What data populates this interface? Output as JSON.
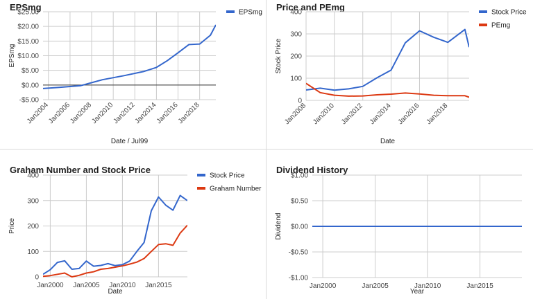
{
  "chart_data": [
    {
      "id": "p1",
      "type": "line",
      "title": "EPSmg",
      "xlabel": "Date / Jul99",
      "ylabel": "EPSmg",
      "xlim": [
        2003.5,
        2019.5
      ],
      "ylim": [
        -5,
        25
      ],
      "yticks": [
        -5,
        0,
        5,
        10,
        15,
        20,
        25
      ],
      "ytick_labels": [
        "-$5.00",
        "$0.00",
        "$5.00",
        "$10.00",
        "$15.00",
        "$20.00",
        "$25.00"
      ],
      "xticks": [
        2004,
        2006,
        2008,
        2010,
        2012,
        2014,
        2016,
        2018
      ],
      "xtick_labels": [
        "Jan2004",
        "Jan2006",
        "Jan2008",
        "Jan2010",
        "Jan2012",
        "Jan2014",
        "Jan2016",
        "Jan2018"
      ],
      "rotate_xticks": true,
      "vgrid": true,
      "zero_line": true,
      "legend": "right",
      "series": [
        {
          "name": "EPSmg",
          "color": "#3366cc",
          "x": [
            2003.5,
            2005,
            2007,
            2009,
            2011,
            2012.8,
            2014,
            2015,
            2016,
            2017,
            2018,
            2019,
            2019.5
          ],
          "y": [
            -1.2,
            -0.8,
            -0.2,
            1.8,
            3.2,
            4.6,
            6.0,
            8.3,
            11.0,
            13.8,
            14.0,
            17.0,
            20.5
          ]
        }
      ]
    },
    {
      "id": "p2",
      "type": "line",
      "title": "Price and PEmg",
      "xlabel": "Date",
      "ylabel": "Stock Price",
      "xlim": [
        2008,
        2019.5
      ],
      "ylim": [
        0,
        400
      ],
      "yticks": [
        0,
        100,
        200,
        300,
        400
      ],
      "ytick_labels": [
        "0",
        "100",
        "200",
        "300",
        "400"
      ],
      "xticks": [
        2008,
        2010,
        2012,
        2014,
        2016,
        2018
      ],
      "xtick_labels": [
        "Jan2008",
        "Jan2010",
        "Jan2012",
        "Jan2014",
        "Jan2016",
        "Jan2018"
      ],
      "rotate_xticks": true,
      "vgrid": true,
      "zero_line": false,
      "legend": "right",
      "series": [
        {
          "name": "Stock Price",
          "color": "#3366cc",
          "x": [
            2008,
            2009,
            2010,
            2011,
            2012,
            2013,
            2014,
            2015,
            2016,
            2017,
            2018,
            2019.2,
            2019.5
          ],
          "y": [
            47,
            55,
            46,
            52,
            63,
            102,
            137,
            260,
            314,
            285,
            262,
            320,
            240
          ]
        },
        {
          "name": "PEmg",
          "color": "#dc3912",
          "x": [
            2008,
            2009,
            2010,
            2011,
            2012,
            2013,
            2014,
            2015,
            2016,
            2017,
            2018,
            2019.2,
            2019.5
          ],
          "y": [
            77,
            35,
            23,
            19,
            20,
            25,
            28,
            33,
            29,
            23,
            21,
            21,
            14
          ]
        }
      ]
    },
    {
      "id": "p3",
      "type": "line",
      "title": "Graham Number and Stock Price",
      "xlabel": "Date",
      "ylabel": "Price",
      "xlim": [
        1999,
        2019
      ],
      "ylim": [
        0,
        400
      ],
      "yticks": [
        0,
        100,
        200,
        300,
        400
      ],
      "ytick_labels": [
        "0",
        "100",
        "200",
        "300",
        "400"
      ],
      "xticks": [
        2000,
        2005,
        2010,
        2015
      ],
      "xtick_labels": [
        "Jan2000",
        "Jan2005",
        "Jan2010",
        "Jan2015"
      ],
      "rotate_xticks": false,
      "vgrid": true,
      "zero_line": false,
      "legend": "right",
      "series": [
        {
          "name": "Stock Price",
          "color": "#3366cc",
          "x": [
            1999,
            2000,
            2001,
            2002,
            2003,
            2004,
            2005,
            2006,
            2007,
            2008,
            2009,
            2010,
            2011,
            2012,
            2013,
            2014,
            2015,
            2016,
            2017,
            2018,
            2019
          ],
          "y": [
            10,
            28,
            57,
            63,
            30,
            33,
            62,
            42,
            45,
            52,
            44,
            48,
            62,
            100,
            135,
            260,
            314,
            282,
            262,
            320,
            300
          ]
        },
        {
          "name": "Graham Number",
          "color": "#dc3912",
          "x": [
            1999,
            2000,
            2001,
            2002,
            2003,
            2004,
            2005,
            2006,
            2007,
            2008,
            2009,
            2010,
            2011,
            2012,
            2013,
            2014,
            2015,
            2016,
            2017,
            2018,
            2019
          ],
          "y": [
            2,
            5,
            10,
            15,
            0,
            6,
            15,
            20,
            30,
            33,
            38,
            43,
            50,
            58,
            72,
            100,
            127,
            130,
            124,
            172,
            203
          ]
        }
      ]
    },
    {
      "id": "p4",
      "type": "line",
      "title": "Dividend History",
      "xlabel": "Year",
      "ylabel": "Dividend",
      "xlim": [
        1999,
        2019
      ],
      "ylim": [
        -1,
        1
      ],
      "yticks": [
        -1,
        -0.5,
        0,
        0.5,
        1
      ],
      "ytick_labels": [
        "-$1.00",
        "-$0.50",
        "$0.00",
        "$0.50",
        "$1.00"
      ],
      "xticks": [
        2000,
        2005,
        2010,
        2015
      ],
      "xtick_labels": [
        "Jan2000",
        "Jan2005",
        "Jan2010",
        "Jan2015"
      ],
      "rotate_xticks": false,
      "vgrid": true,
      "zero_line": false,
      "legend": "none",
      "series": [
        {
          "name": "Dividend",
          "color": "#3366cc",
          "x": [
            1999,
            2019
          ],
          "y": [
            0,
            0
          ]
        }
      ]
    }
  ]
}
